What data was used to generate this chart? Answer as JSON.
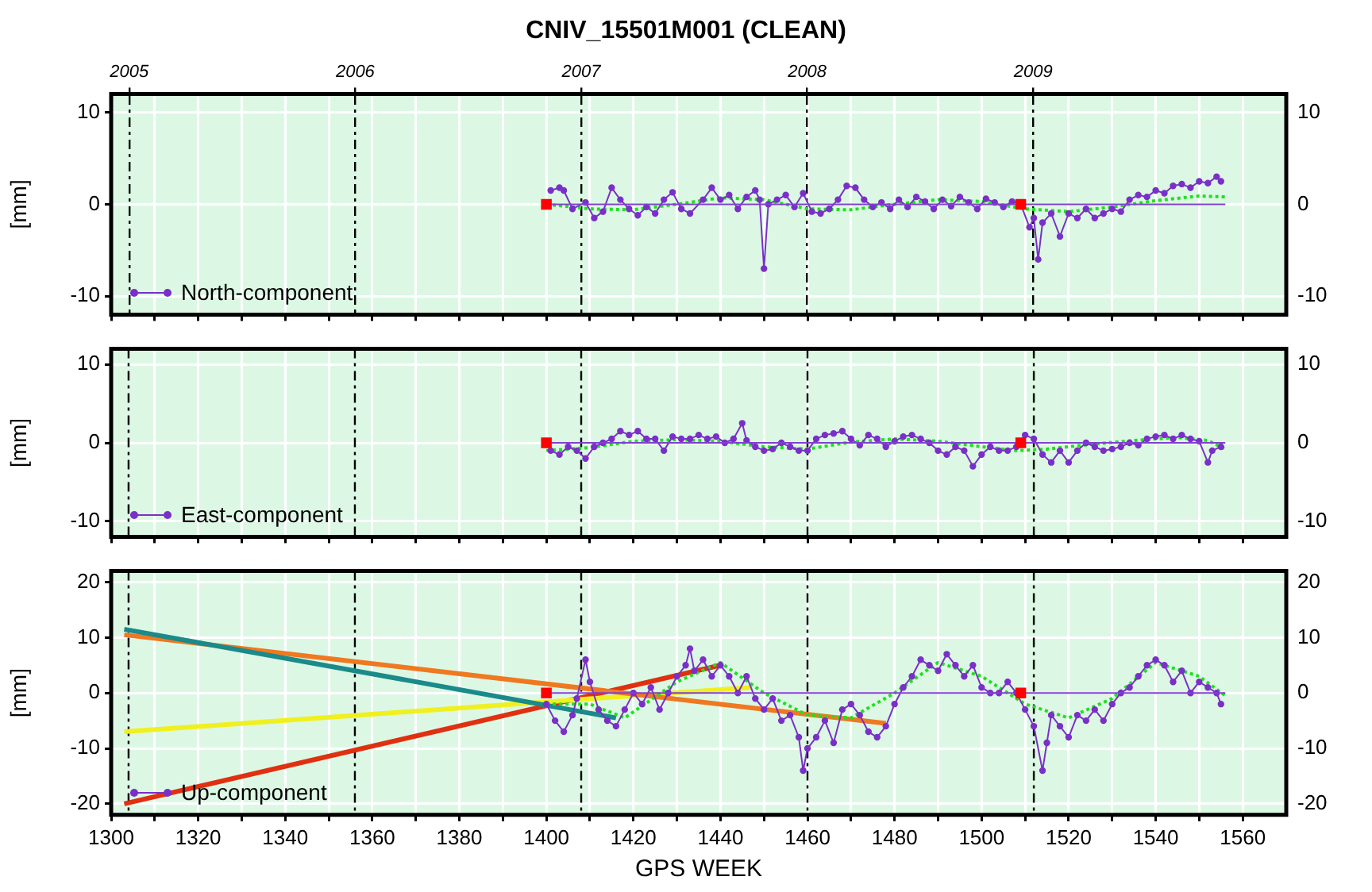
{
  "chart_data": [
    {
      "type": "line",
      "title": "CNIV_15501M001 (CLEAN)",
      "ylabel": "[mm]",
      "xlim": [
        1300,
        1570
      ],
      "xticks": [
        1300,
        {
          "value": 1310,
          "label": null
        },
        1320,
        {
          "value": 1330,
          "label": null
        },
        1340,
        {
          "value": 1350,
          "label": null
        },
        1360,
        {
          "value": 1370,
          "label": null
        },
        1380,
        {
          "value": 1390,
          "label": null
        },
        1400,
        {
          "value": 1410,
          "label": null
        },
        1420,
        {
          "value": 1430,
          "label": null
        },
        1440,
        {
          "value": 1450,
          "label": null
        },
        1460,
        {
          "value": 1470,
          "label": null
        },
        1480,
        {
          "value": 1490,
          "label": null
        },
        1500,
        {
          "value": 1510,
          "label": null
        },
        1520,
        {
          "value": 1530,
          "label": null
        },
        1540,
        {
          "value": 1550,
          "label": null
        },
        1560
      ],
      "x2lim": [
        2004.92,
        2010.12
      ],
      "x2ticks": [
        2005,
        2006,
        2007,
        2008,
        2009
      ],
      "ylim": [
        -12,
        12
      ],
      "yticks": [
        -10,
        0,
        10
      ],
      "y2lim": [
        -12,
        12
      ],
      "y2ticks": [
        -10,
        0,
        10
      ],
      "tick_labels": "y",
      "grid": true,
      "legend": "bottom left",
      "series": [
        {
          "color": "#8040d0",
          "x": [
            1400,
            1556
          ],
          "values": [
            0,
            0
          ]
        },
        {
          "name": "North-component",
          "color": "#7a30c8",
          "marker": "circle",
          "x": [
            1401,
            1403,
            1404,
            1406,
            1409,
            1411,
            1413,
            1415,
            1417,
            1419,
            1421,
            1423,
            1425,
            1427,
            1429,
            1431,
            1433,
            1436,
            1438,
            1440,
            1442,
            1444,
            1446,
            1448,
            1449,
            1450,
            1451,
            1453,
            1455,
            1457,
            1459,
            1461,
            1463,
            1465,
            1467,
            1469,
            1471,
            1473,
            1475,
            1477,
            1479,
            1481,
            1483,
            1485,
            1487,
            1489,
            1491,
            1493,
            1495,
            1497,
            1499,
            1501,
            1503,
            1505,
            1507,
            1509,
            1511,
            1512,
            1513,
            1514,
            1516,
            1518,
            1520,
            1522,
            1524,
            1526,
            1528,
            1530,
            1532,
            1534,
            1536,
            1538,
            1540,
            1542,
            1544,
            1546,
            1548,
            1550,
            1552,
            1554,
            1555
          ],
          "values": [
            1.5,
            1.8,
            1.5,
            -0.5,
            0.2,
            -1.5,
            -0.8,
            1.8,
            0.5,
            -0.5,
            -1.2,
            -0.3,
            -1,
            0.5,
            1.3,
            -0.5,
            -1,
            0.5,
            1.8,
            0.5,
            1,
            -0.5,
            0.8,
            1.5,
            0.5,
            -7,
            0,
            0.5,
            1,
            -0.3,
            1.2,
            -0.8,
            -1,
            -0.5,
            0.5,
            2,
            1.8,
            0.5,
            -0.3,
            0.2,
            -0.5,
            0.5,
            -0.3,
            0.8,
            0.3,
            -0.5,
            0.5,
            -0.2,
            0.8,
            0.2,
            -0.5,
            0.6,
            0.2,
            -0.3,
            0.3,
            0,
            -2.5,
            -1.5,
            -6,
            -2,
            -1,
            -3.5,
            -1,
            -1.5,
            -0.5,
            -1.5,
            -1,
            -0.5,
            -0.8,
            0.5,
            1,
            0.8,
            1.5,
            1.2,
            2,
            2.2,
            1.8,
            2.5,
            2.3,
            3,
            2.5
          ]
        },
        {
          "color": "#20e020",
          "line_style": "dotted",
          "x": [
            1400,
            1410,
            1420,
            1430,
            1440,
            1450,
            1460,
            1470,
            1480,
            1490,
            1500,
            1510,
            1520,
            1530,
            1540,
            1550,
            1556
          ],
          "values": [
            0,
            -0.5,
            -0.6,
            0,
            0.7,
            0.5,
            -0.5,
            -0.6,
            0,
            0.5,
            0.3,
            -0.5,
            -0.8,
            -0.3,
            0.4,
            0.9,
            0.8
          ]
        },
        {
          "type": "scatter",
          "marker": "square",
          "color": "#ff0000",
          "x": [
            1400,
            1509
          ],
          "values": [
            0,
            0
          ]
        }
      ]
    },
    {
      "type": "line",
      "ylabel": "[mm]",
      "xlim": [
        1300,
        1570
      ],
      "xticks": [
        1300,
        {
          "value": 1310,
          "label": null
        },
        1320,
        {
          "value": 1330,
          "label": null
        },
        1340,
        {
          "value": 1350,
          "label": null
        },
        1360,
        {
          "value": 1370,
          "label": null
        },
        1380,
        {
          "value": 1390,
          "label": null
        },
        1400,
        {
          "value": 1410,
          "label": null
        },
        1420,
        {
          "value": 1430,
          "label": null
        },
        1440,
        {
          "value": 1450,
          "label": null
        },
        1460,
        {
          "value": 1470,
          "label": null
        },
        1480,
        {
          "value": 1490,
          "label": null
        },
        1500,
        {
          "value": 1510,
          "label": null
        },
        1520,
        {
          "value": 1530,
          "label": null
        },
        1540,
        {
          "value": 1550,
          "label": null
        },
        1560
      ],
      "ylim": [
        -12,
        12
      ],
      "yticks": [
        -10,
        0,
        10
      ],
      "y2lim": [
        -12,
        12
      ],
      "y2ticks": [
        -10,
        0,
        10
      ],
      "tick_labels": "y",
      "grid": true,
      "legend": "bottom left",
      "ref_lines": [
        {
          "axis": "x",
          "value": 1304,
          "line_style": "dashed",
          "color": "#000000"
        },
        {
          "axis": "x",
          "value": 1356,
          "line_style": "dashed",
          "color": "#000000"
        },
        {
          "axis": "x",
          "value": 1408,
          "line_style": "dashed",
          "color": "#000000"
        },
        {
          "axis": "x",
          "value": 1460,
          "line_style": "dashed",
          "color": "#000000"
        },
        {
          "axis": "x",
          "value": 1512,
          "line_style": "dashed",
          "color": "#000000"
        }
      ],
      "series": [
        {
          "color": "#8040d0",
          "x": [
            1400,
            1556
          ],
          "values": [
            0,
            0
          ]
        },
        {
          "name": "East-component",
          "color": "#7a30c8",
          "marker": "circle",
          "x": [
            1401,
            1403,
            1405,
            1407,
            1409,
            1411,
            1413,
            1415,
            1417,
            1419,
            1421,
            1423,
            1425,
            1427,
            1429,
            1431,
            1433,
            1435,
            1437,
            1439,
            1441,
            1443,
            1445,
            1446,
            1448,
            1450,
            1452,
            1454,
            1456,
            1458,
            1460,
            1462,
            1464,
            1466,
            1468,
            1470,
            1472,
            1474,
            1476,
            1478,
            1480,
            1482,
            1484,
            1486,
            1488,
            1490,
            1492,
            1494,
            1496,
            1498,
            1500,
            1502,
            1504,
            1506,
            1508,
            1510,
            1512,
            1514,
            1516,
            1518,
            1520,
            1522,
            1524,
            1526,
            1528,
            1530,
            1532,
            1534,
            1536,
            1538,
            1540,
            1542,
            1544,
            1546,
            1548,
            1550,
            1552,
            1553,
            1555
          ],
          "values": [
            -1,
            -1.5,
            -0.5,
            -1,
            -2,
            -0.5,
            0,
            0.5,
            1.5,
            1,
            1.5,
            0.5,
            0.5,
            -1,
            0.8,
            0.5,
            0.5,
            1,
            0.5,
            0.8,
            0,
            0.5,
            2.5,
            0.3,
            -0.5,
            -1,
            -0.8,
            0,
            -0.5,
            -1,
            -1,
            0.5,
            1,
            1.2,
            1.5,
            0.5,
            -0.3,
            1,
            0.5,
            -0.5,
            0.2,
            0.8,
            1,
            0.5,
            0,
            -1,
            -1.5,
            -0.5,
            -1,
            -3,
            -1.5,
            -0.5,
            -1,
            -1,
            -0.5,
            1,
            0.5,
            -1.5,
            -2.5,
            -1,
            -2.5,
            -1,
            0,
            -0.5,
            -1,
            -0.8,
            -0.5,
            0,
            -0.3,
            0.5,
            0.8,
            1,
            0.5,
            1,
            0.5,
            0.2,
            -2.5,
            -1,
            -0.5
          ]
        },
        {
          "color": "#20e020",
          "line_style": "dotted",
          "x": [
            1400,
            1410,
            1420,
            1430,
            1440,
            1450,
            1460,
            1470,
            1480,
            1490,
            1500,
            1508,
            1515,
            1525,
            1535,
            1545,
            1552,
            1556
          ],
          "values": [
            -1,
            -0.6,
            0.2,
            0.4,
            0.2,
            -0.5,
            -0.8,
            0.1,
            0.5,
            0.2,
            -0.5,
            -1,
            -0.8,
            -0.2,
            0.3,
            0.7,
            0.3,
            -0.8
          ]
        },
        {
          "type": "scatter",
          "marker": "square",
          "color": "#ff0000",
          "x": [
            1400,
            1509
          ],
          "values": [
            0,
            0
          ]
        }
      ]
    },
    {
      "type": "line",
      "ylabel": "[mm]",
      "xlabel": "GPS WEEK",
      "xlim": [
        1300,
        1570
      ],
      "xticks": [
        1300,
        {
          "value": 1310,
          "label": null
        },
        1320,
        {
          "value": 1330,
          "label": null
        },
        1340,
        {
          "value": 1350,
          "label": null
        },
        1360,
        {
          "value": 1370,
          "label": null
        },
        1380,
        {
          "value": 1390,
          "label": null
        },
        1400,
        {
          "value": 1410,
          "label": null
        },
        1420,
        {
          "value": 1430,
          "label": null
        },
        1440,
        {
          "value": 1450,
          "label": null
        },
        1460,
        {
          "value": 1470,
          "label": null
        },
        1480,
        {
          "value": 1490,
          "label": null
        },
        1500,
        {
          "value": 1510,
          "label": null
        },
        1520,
        {
          "value": 1530,
          "label": null
        },
        1540,
        {
          "value": 1550,
          "label": null
        },
        1560
      ],
      "ylim": [
        -22,
        22
      ],
      "yticks": [
        -20,
        -10,
        0,
        10,
        20
      ],
      "y2lim": [
        -22,
        22
      ],
      "y2ticks": [
        -20,
        -10,
        0,
        10,
        20
      ],
      "grid": true,
      "legend": "bottom left",
      "ref_lines": [
        {
          "axis": "x",
          "value": 1304,
          "line_style": "dashed",
          "color": "#000000"
        },
        {
          "axis": "x",
          "value": 1356,
          "line_style": "dashed",
          "color": "#000000"
        },
        {
          "axis": "x",
          "value": 1408,
          "line_style": "dashed",
          "color": "#000000"
        },
        {
          "axis": "x",
          "value": 1460,
          "line_style": "dashed",
          "color": "#000000"
        },
        {
          "axis": "x",
          "value": 1512,
          "line_style": "dashed",
          "color": "#000000"
        }
      ],
      "series": [
        {
          "color": "#8040d0",
          "x": [
            1400,
            1556
          ],
          "values": [
            0,
            0
          ]
        },
        {
          "name": "Up-component",
          "color": "#7a30c8",
          "marker": "circle",
          "x": [
            1400,
            1402,
            1404,
            1406,
            1407,
            1409,
            1410,
            1412,
            1414,
            1416,
            1418,
            1420,
            1422,
            1424,
            1426,
            1428,
            1430,
            1432,
            1433,
            1434,
            1436,
            1438,
            1440,
            1442,
            1444,
            1446,
            1448,
            1450,
            1452,
            1454,
            1456,
            1458,
            1459,
            1460,
            1462,
            1464,
            1466,
            1468,
            1470,
            1472,
            1474,
            1476,
            1478,
            1480,
            1482,
            1484,
            1486,
            1488,
            1490,
            1492,
            1494,
            1496,
            1498,
            1500,
            1502,
            1504,
            1506,
            1508,
            1510,
            1512,
            1514,
            1515,
            1516,
            1518,
            1520,
            1522,
            1524,
            1526,
            1528,
            1530,
            1532,
            1534,
            1536,
            1538,
            1540,
            1542,
            1544,
            1546,
            1548,
            1550,
            1552,
            1554,
            1555
          ],
          "values": [
            -2,
            -5,
            -7,
            -4,
            -1,
            6,
            2,
            -3,
            -5,
            -6,
            -3,
            0,
            -2,
            1,
            -3,
            0,
            3,
            5,
            8,
            4,
            6,
            3,
            5,
            3,
            0,
            3,
            -1,
            -3,
            -1,
            -5,
            -4,
            -8,
            -14,
            -10,
            -8,
            -5,
            -9,
            -3,
            -2,
            -4,
            -7,
            -8,
            -6,
            -2,
            1,
            3,
            6,
            5,
            4,
            7,
            5,
            3,
            5,
            1,
            0,
            0,
            2,
            0,
            -3,
            -6,
            -14,
            -9,
            -4,
            -6,
            -8,
            -4,
            -5,
            -3,
            -5,
            -2,
            0,
            1,
            3,
            5,
            6,
            5,
            2,
            4,
            0,
            2,
            1,
            0,
            -2
          ]
        },
        {
          "color": "#20e020",
          "line_style": "dotted",
          "x": [
            1400,
            1410,
            1418,
            1430,
            1440,
            1450,
            1460,
            1470,
            1480,
            1490,
            1500,
            1510,
            1520,
            1530,
            1540,
            1550,
            1556
          ],
          "values": [
            -2,
            -2,
            -4.5,
            2,
            5.5,
            0,
            -4,
            -4.5,
            0,
            5.5,
            3,
            -2,
            -4.5,
            -1,
            5.5,
            3,
            -0.5
          ]
        },
        {
          "color": "#1a8a8a",
          "x": [
            1303,
            1416
          ],
          "values": [
            11.5,
            -4.5
          ]
        },
        {
          "color": "#f07820",
          "x": [
            1303,
            1478
          ],
          "values": [
            10.5,
            -5.5
          ]
        },
        {
          "color": "#f0f020",
          "x": [
            1303,
            1447
          ],
          "values": [
            -7,
            1
          ]
        },
        {
          "color": "#e03010",
          "x": [
            1303,
            1440
          ],
          "values": [
            -20,
            5
          ]
        },
        {
          "type": "scatter",
          "marker": "square",
          "color": "#ff0000",
          "x": [
            1400,
            1509
          ],
          "values": [
            0,
            0
          ]
        }
      ]
    }
  ]
}
